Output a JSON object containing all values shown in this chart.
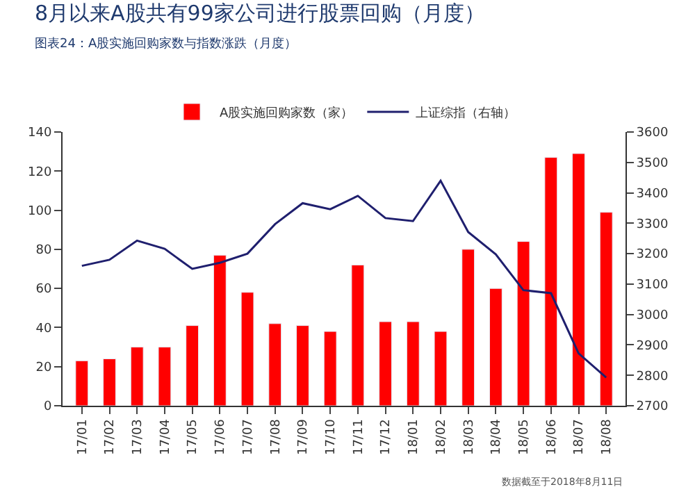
{
  "chart_data": {
    "type": "bar",
    "title": "8月以来A股共有99家公司进行股票回购（月度）",
    "subtitle": "图表24：A股实施回购家数与指数涨跌（月度）",
    "categories": [
      "17/01",
      "17/02",
      "17/03",
      "17/04",
      "17/05",
      "17/06",
      "17/07",
      "17/08",
      "17/09",
      "17/10",
      "17/11",
      "17/12",
      "18/01",
      "18/02",
      "18/03",
      "18/04",
      "18/05",
      "18/06",
      "18/07",
      "18/08"
    ],
    "series": [
      {
        "name": "A股实施回购家数（家）",
        "color": "#ff0000",
        "values": [
          23,
          24,
          30,
          30,
          41,
          77,
          58,
          42,
          41,
          38,
          72,
          43,
          43,
          38,
          80,
          60,
          84,
          127,
          129,
          99
        ]
      },
      {
        "name": "上证综指（右轴）",
        "type": "line",
        "axis": "y2",
        "color": "#1f1f6e",
        "values": [
          3160,
          3180,
          3243,
          3216,
          3150,
          3170,
          3200,
          3297,
          3366,
          3346,
          3390,
          3317,
          3307,
          3440,
          3271,
          3198,
          3080,
          3070,
          2872,
          2793
        ]
      }
    ],
    "ylim": [
      0,
      140
    ],
    "yticks": [
      0,
      20,
      40,
      60,
      80,
      100,
      120,
      140
    ],
    "y2lim": [
      2700,
      3600
    ],
    "y2ticks": [
      2700,
      2800,
      2900,
      3000,
      3100,
      3200,
      3300,
      3400,
      3500,
      3600
    ],
    "legend": "top",
    "grid": false,
    "marker": "none",
    "line_style": "solid",
    "annotations": [
      "数据截至于2018年8月11日"
    ]
  }
}
